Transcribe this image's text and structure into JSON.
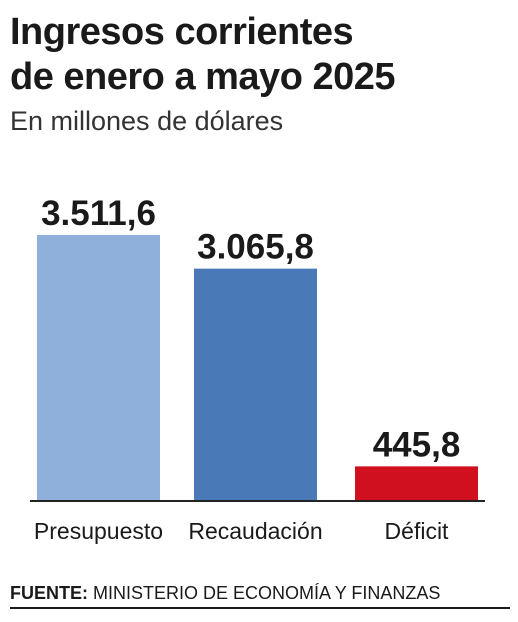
{
  "header": {
    "title_line1": "Ingresos corrientes",
    "title_line2": "de enero a mayo 2025",
    "subtitle": "En millones de dólares"
  },
  "chart_data": {
    "type": "bar",
    "title": "Ingresos corrientes de enero a mayo 2025",
    "subtitle": "En millones de dólares",
    "categories": [
      "Presupuesto",
      "Recaudación",
      "Déficit"
    ],
    "values": [
      3511.6,
      3065.8,
      445.8
    ],
    "value_labels": [
      "3.511,6",
      "3.065,8",
      "445,8"
    ],
    "colors": [
      "#8eb0db",
      "#4a79b8",
      "#d0101e"
    ],
    "ylim": [
      0,
      3511.6
    ],
    "grid": false,
    "legend": "none"
  },
  "footer": {
    "source_label": "FUENTE:",
    "source_text": "MINISTERIO DE ECONOMÍA Y FINANZAS"
  }
}
